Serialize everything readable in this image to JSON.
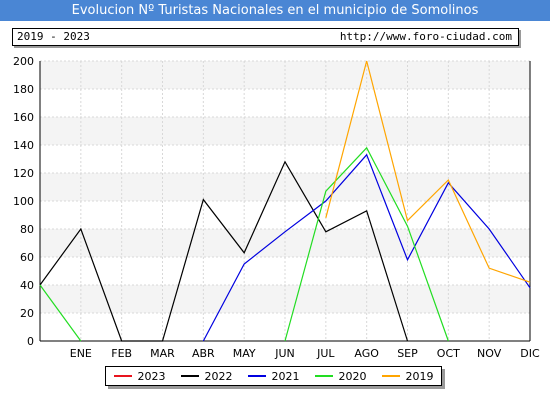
{
  "header": {
    "title": "Evolucion Nº Turistas Nacionales en el municipio de Somolinos",
    "range": "2019 - 2023",
    "url": "http://www.foro-ciudad.com"
  },
  "chart_data": {
    "type": "line",
    "categories": [
      "",
      "ENE",
      "FEB",
      "MAR",
      "ABR",
      "MAY",
      "JUN",
      "JUL",
      "AGO",
      "SEP",
      "OCT",
      "NOV",
      "DIC"
    ],
    "ylim": [
      0,
      200
    ],
    "yticks": [
      "0",
      "20",
      "40",
      "60",
      "80",
      "100",
      "120",
      "140",
      "160",
      "180",
      "200"
    ],
    "grid": true,
    "legend_position": "bottom",
    "series": [
      {
        "name": "2023",
        "color": "#e8141e",
        "values": [
          null,
          null,
          null,
          null,
          null,
          null,
          null,
          null,
          null,
          null,
          null,
          null,
          null
        ]
      },
      {
        "name": "2022",
        "color": "#000000",
        "values": [
          40,
          80,
          0,
          0,
          101,
          63,
          128,
          78,
          93,
          0,
          null,
          null,
          null
        ]
      },
      {
        "name": "2021",
        "color": "#0000e0",
        "values": [
          null,
          null,
          null,
          null,
          0,
          55,
          78,
          100,
          133,
          58,
          113,
          80,
          38
        ]
      },
      {
        "name": "2020",
        "color": "#22dd22",
        "values": [
          40,
          0,
          null,
          null,
          null,
          null,
          0,
          107,
          138,
          82,
          0,
          null,
          null
        ]
      },
      {
        "name": "2019",
        "color": "#ffa500",
        "values": [
          null,
          null,
          null,
          null,
          null,
          null,
          null,
          88,
          200,
          86,
          115,
          52,
          42
        ]
      }
    ]
  }
}
